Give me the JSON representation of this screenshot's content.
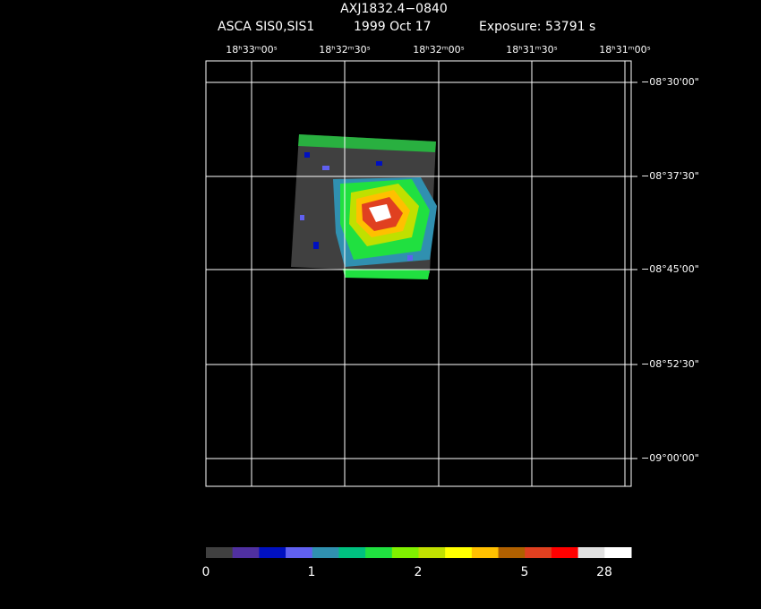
{
  "header": {
    "title": "AXJ1832.4−0840",
    "instrument": "ASCA SIS0,SIS1",
    "date": "1999 Oct 17",
    "exposure": "Exposure: 53791 s"
  },
  "ra_labels": [
    "18ʰ33ᵐ00ˢ",
    "18ʰ32ᵐ30ˢ",
    "18ʰ32ᵐ00ˢ",
    "18ʰ31ᵐ30ˢ",
    "18ʰ31ᵐ00ˢ"
  ],
  "dec_labels": [
    "−08°30'00\"",
    "−08°37'30\"",
    "−08°45'00\"",
    "−08°52'30\"",
    "−09°00'00\""
  ],
  "colorbar": {
    "colors": [
      "#404040",
      "#5030a0",
      "#0010c0",
      "#6060f0",
      "#3090b0",
      "#00c080",
      "#20e040",
      "#80f000",
      "#c0e000",
      "#ffff00",
      "#ffc000",
      "#b06000",
      "#e04020",
      "#ff0000",
      "#e0e0e0",
      "#ffffff"
    ],
    "labels": [
      "0",
      "1",
      "2",
      "5",
      "28"
    ]
  }
}
